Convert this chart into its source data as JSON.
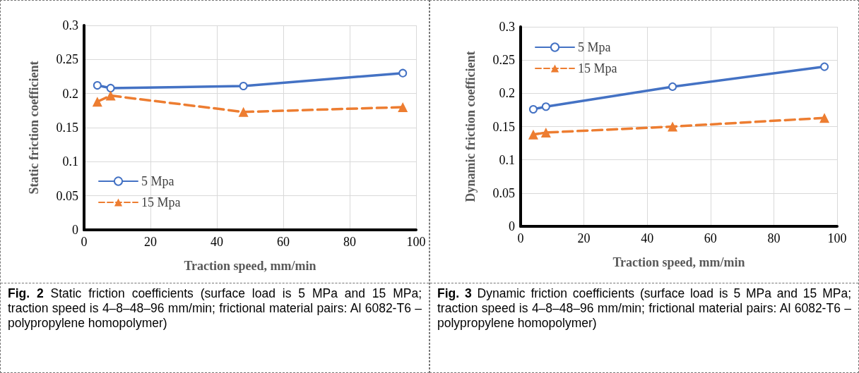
{
  "chart_data": [
    {
      "type": "line",
      "xlabel": "Traction speed, mm/min",
      "ylabel": "Static friction coefficient",
      "xlim": [
        0,
        100
      ],
      "xticks": [
        0,
        20,
        40,
        60,
        80,
        100
      ],
      "ylim": [
        0,
        0.3
      ],
      "yticks": [
        0,
        0.05,
        0.1,
        0.15,
        0.2,
        0.25,
        0.3
      ],
      "grid": true,
      "legend": "bottom left",
      "x": [
        4,
        8,
        48,
        96
      ],
      "series": [
        {
          "name": "5 Mpa",
          "color": "#4472c4",
          "marker": "circle",
          "line_style": "solid",
          "values": [
            0.212,
            0.208,
            0.211,
            0.23
          ]
        },
        {
          "name": "15 Mpa",
          "color": "#ed7d31",
          "marker": "triangle",
          "line_style": "dashed",
          "values": [
            0.188,
            0.197,
            0.173,
            0.18
          ]
        }
      ],
      "annotations": [
        "Fig. 2 Static friction coefficients (surface load is 5 MPa and 15 MPa; traction speed is 4–8–48–96 mm/min; frictional material pairs: Al 6082-T6 – polypropylene homopolymer)"
      ]
    },
    {
      "type": "line",
      "xlabel": "Traction speed, mm/min",
      "ylabel": "Dynamic friction coefficient",
      "xlim": [
        0,
        100
      ],
      "xticks": [
        0,
        20,
        40,
        60,
        80,
        100
      ],
      "ylim": [
        0,
        0.3
      ],
      "yticks": [
        0,
        0.05,
        0.1,
        0.15,
        0.2,
        0.25,
        0.3
      ],
      "grid": true,
      "legend": "top left",
      "x": [
        4,
        8,
        48,
        96
      ],
      "series": [
        {
          "name": "5 Mpa",
          "color": "#4472c4",
          "marker": "circle",
          "line_style": "solid",
          "values": [
            0.176,
            0.18,
            0.21,
            0.24
          ]
        },
        {
          "name": "15 Mpa",
          "color": "#ed7d31",
          "marker": "triangle",
          "line_style": "dashed",
          "values": [
            0.138,
            0.141,
            0.15,
            0.163
          ]
        }
      ],
      "annotations": [
        "Fig. 3 Dynamic friction coefficients (surface load is 5 MPa and 15 MPa; traction speed is 4–8–48–96 mm/min; frictional material pairs: Al 6082-T6 – polypropylene homopolymer)"
      ]
    }
  ]
}
